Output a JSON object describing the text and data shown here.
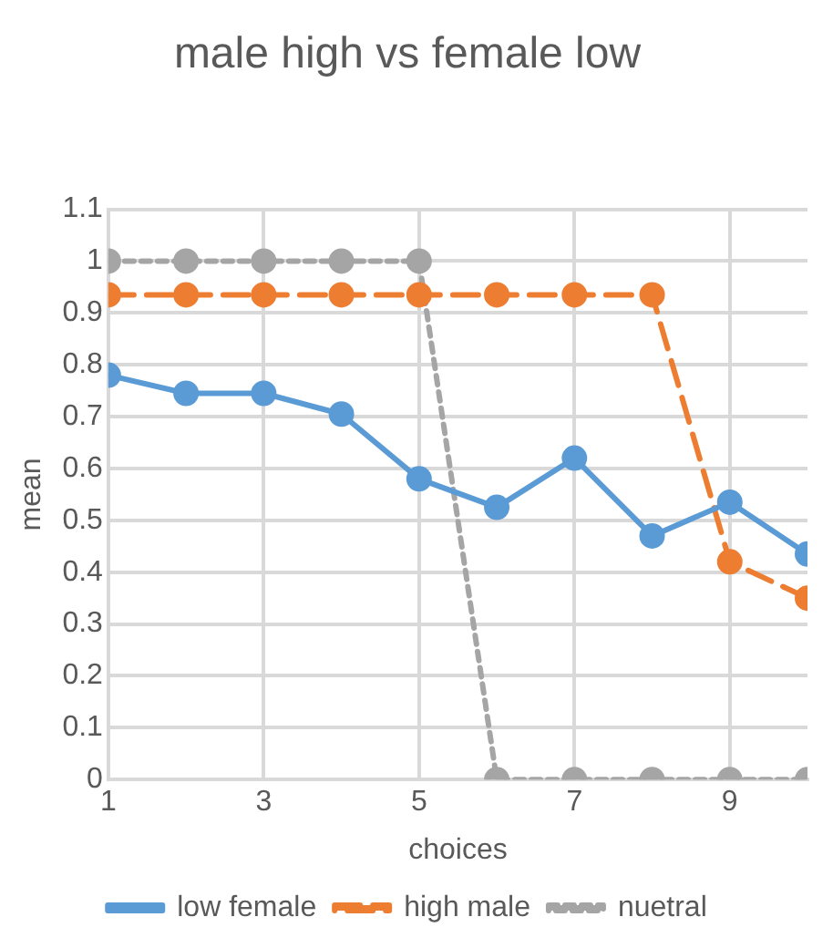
{
  "chart_data": {
    "type": "line",
    "title": "male high vs female low",
    "xlabel": "choices",
    "ylabel": "mean",
    "x": [
      1,
      2,
      3,
      4,
      5,
      6,
      7,
      8,
      9,
      10
    ],
    "series": [
      {
        "name": "low female",
        "color": "#5b9bd5",
        "line_style": "solid",
        "values": [
          0.78,
          0.745,
          0.745,
          0.705,
          0.58,
          0.525,
          0.62,
          0.47,
          0.535,
          0.435
        ]
      },
      {
        "name": "high male",
        "color": "#ed7d31",
        "line_style": "dashed",
        "values": [
          0.935,
          0.935,
          0.935,
          0.935,
          0.935,
          0.935,
          0.935,
          0.935,
          0.42,
          0.35
        ]
      },
      {
        "name": "nuetral",
        "color": "#a5a5a5",
        "line_style": "dotted",
        "values": [
          1,
          1,
          1,
          1,
          1,
          0,
          0,
          0,
          0,
          0
        ]
      }
    ],
    "xlim": [
      1,
      10
    ],
    "xticks": [
      1,
      3,
      5,
      7,
      9
    ],
    "ylim": [
      0,
      1.1
    ],
    "yticks": [
      0,
      0.1,
      0.2,
      0.3,
      0.4,
      0.5,
      0.6,
      0.7,
      0.8,
      0.9,
      1,
      1.1
    ],
    "grid": true,
    "legend": "bottom",
    "marker": "circle"
  }
}
